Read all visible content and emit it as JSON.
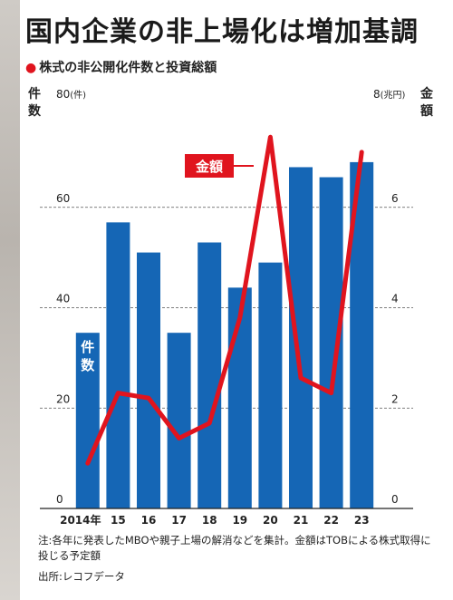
{
  "title": "国内企業の非上場化は増加基調",
  "subtitle": "株式の非公開化件数と投資総額",
  "left_axis": {
    "title": "件数",
    "top_label": "80",
    "unit": "(件)"
  },
  "right_axis": {
    "title": "金額",
    "top_label": "8",
    "unit": "(兆円)"
  },
  "series_labels": {
    "bars": "件数",
    "line": "金額"
  },
  "notes": "注:各年に発表したMBOや親子上場の解消などを集計。金額はTOBによる株式取得に投じる予定額",
  "source": "出所:レコフデータ",
  "colors": {
    "bar": "#1566b5",
    "line": "#e0141e",
    "grid": "#555555"
  },
  "chart_data": {
    "type": "bar",
    "categories": [
      "2014年",
      "15",
      "16",
      "17",
      "18",
      "19",
      "20",
      "21",
      "22",
      "23"
    ],
    "series": [
      {
        "name": "件数",
        "type": "bar",
        "axis": "left",
        "values": [
          35,
          57,
          51,
          35,
          53,
          44,
          49,
          68,
          66,
          69
        ]
      },
      {
        "name": "金額",
        "type": "line",
        "axis": "right",
        "values": [
          0.9,
          2.3,
          2.2,
          1.4,
          1.7,
          3.8,
          7.4,
          2.6,
          2.3,
          7.1
        ]
      }
    ],
    "ylim_left": [
      0,
      80
    ],
    "ylim_right": [
      0,
      8
    ],
    "yticks_left": [
      0,
      20,
      40,
      60
    ],
    "yticks_right": [
      0,
      2,
      4,
      6
    ],
    "grid": true
  }
}
